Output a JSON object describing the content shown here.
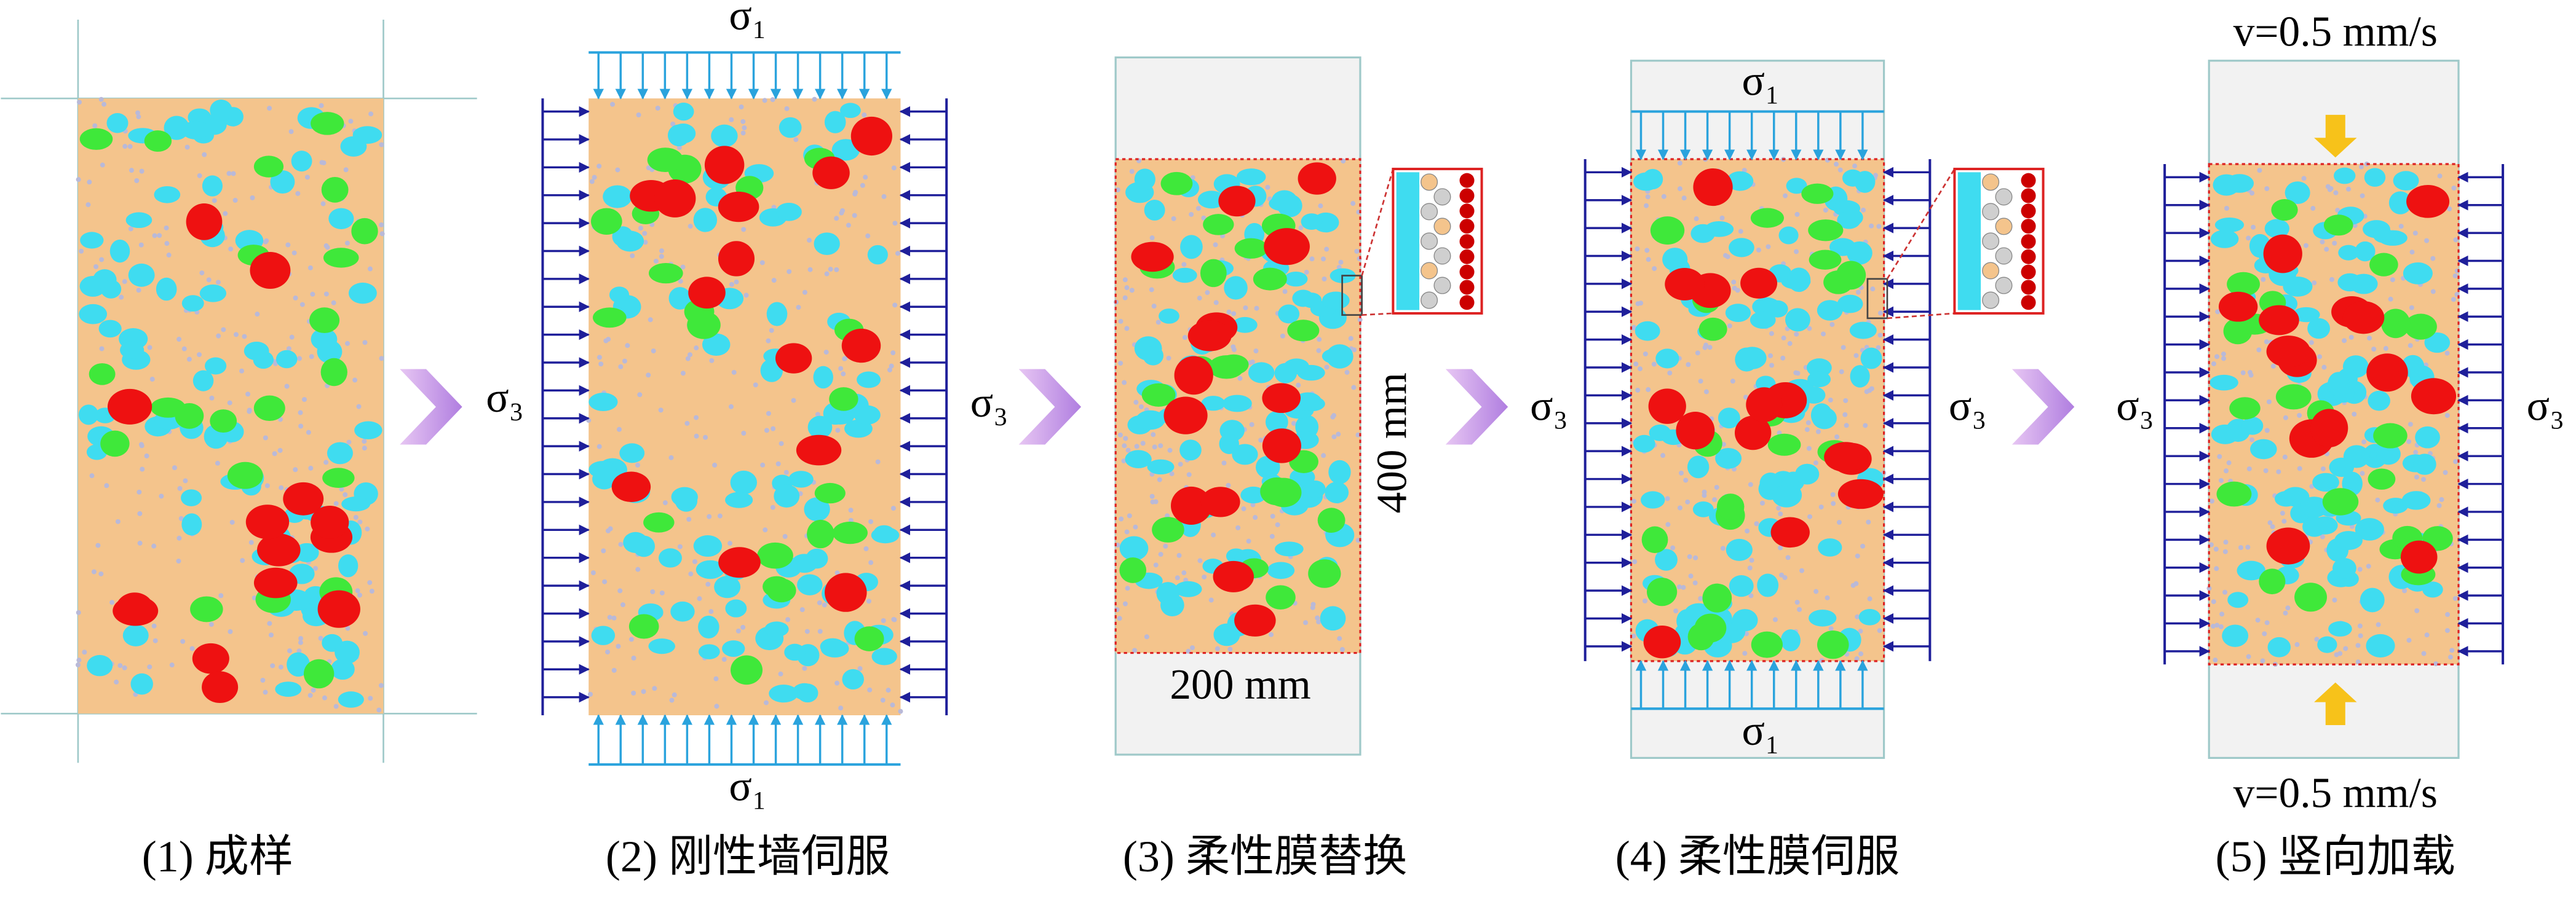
{
  "panels": [
    {
      "caption": "(1) 成样"
    },
    {
      "caption": "(2) 刚性墙伺服",
      "top_load": "σ₁",
      "bottom_load": "σ₁",
      "left_load": "σ₃",
      "right_load": "σ₃"
    },
    {
      "caption": "(3) 柔性膜替换",
      "width_label": "200 mm",
      "height_label": "400 mm"
    },
    {
      "caption": "(4) 柔性膜伺服",
      "top_load": "σ₁",
      "bottom_load": "σ₁",
      "left_load": "σ₃",
      "right_load": "σ₃"
    },
    {
      "caption": "(5) 竖向加载",
      "top_load": "v=0.5 mm/s",
      "bottom_load": "v=0.5 mm/s",
      "left_load": "σ₃",
      "right_load": "σ₃"
    }
  ]
}
